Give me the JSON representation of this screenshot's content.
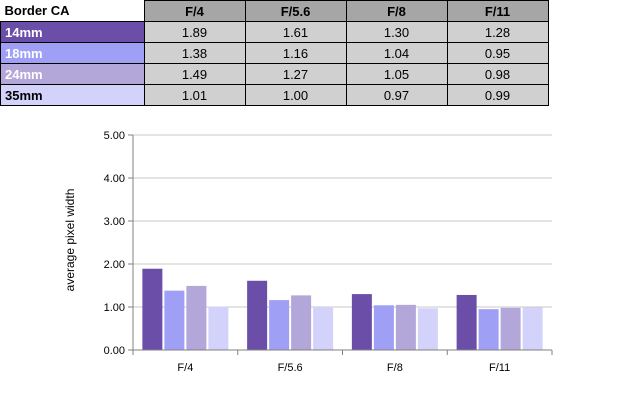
{
  "table": {
    "corner_label": "Border CA",
    "columns": [
      "F/4",
      "F/5.6",
      "F/8",
      "F/11"
    ],
    "rows": [
      {
        "label": "14mm",
        "color": "#6b4ea8",
        "label_color": "#ffffff",
        "values": [
          "1.89",
          "1.61",
          "1.30",
          "1.28"
        ]
      },
      {
        "label": "18mm",
        "color": "#9f9ff5",
        "label_color": "#ffffff",
        "values": [
          "1.38",
          "1.16",
          "1.04",
          "0.95"
        ]
      },
      {
        "label": "24mm",
        "color": "#b3a6d8",
        "label_color": "#ffffff",
        "values": [
          "1.49",
          "1.27",
          "1.05",
          "0.98"
        ]
      },
      {
        "label": "35mm",
        "color": "#d2d2fb",
        "label_color": "#000000",
        "values": [
          "1.01",
          "1.00",
          "0.97",
          "0.99"
        ]
      }
    ]
  },
  "chart_data": {
    "type": "bar",
    "title": "",
    "xlabel": "",
    "ylabel": "average pixel width",
    "categories": [
      "F/4",
      "F/5.6",
      "F/8",
      "F/11"
    ],
    "series": [
      {
        "name": "14mm",
        "color": "#6b4ea8",
        "values": [
          1.89,
          1.61,
          1.3,
          1.28
        ]
      },
      {
        "name": "18mm",
        "color": "#9f9ff5",
        "values": [
          1.38,
          1.16,
          1.04,
          0.95
        ]
      },
      {
        "name": "24mm",
        "color": "#b3a6d8",
        "values": [
          1.49,
          1.27,
          1.05,
          0.98
        ]
      },
      {
        "name": "35mm",
        "color": "#d2d2fb",
        "values": [
          1.01,
          1.0,
          0.97,
          0.99
        ]
      }
    ],
    "ylim": [
      0,
      5
    ],
    "yticks": [
      "0.00",
      "1.00",
      "2.00",
      "3.00",
      "4.00",
      "5.00"
    ],
    "grid": true,
    "legend": "none"
  }
}
